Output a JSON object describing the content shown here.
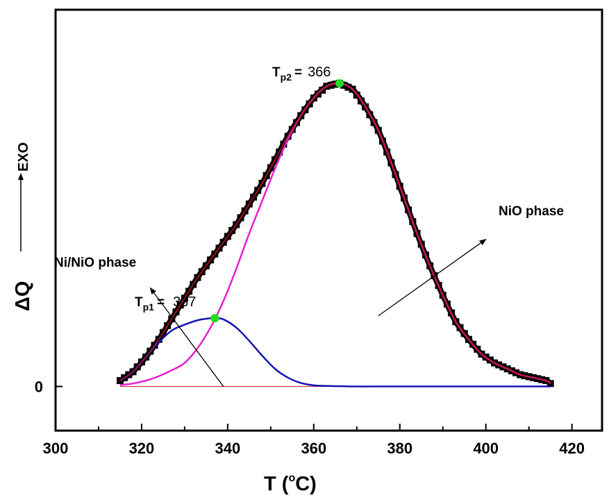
{
  "chart_data": {
    "type": "line",
    "xlabel": "T (°C)",
    "xlabel_main": "T (",
    "xlabel_deg": "o",
    "xlabel_unit": "C)",
    "ylabel": "ΔQ",
    "ylabel_exo": "EXO",
    "xlim": [
      300,
      427
    ],
    "ylim": [
      -0.15,
      1.28
    ],
    "x_ticks": [
      300,
      320,
      340,
      360,
      380,
      400,
      420
    ],
    "x_tick_labels": [
      "300",
      "320",
      "340",
      "360",
      "380",
      "400",
      "420"
    ],
    "y_ticks": [
      0
    ],
    "y_tick_labels": [
      "0"
    ],
    "grid": false,
    "colors": {
      "measured": "#000000",
      "total_fit": "#c0141e",
      "peak1": "#1414b4",
      "peak2": "#e61ed2",
      "baseline": "#c0141e",
      "peak_marker": "#1edc1e"
    },
    "series": [
      {
        "key": "measured",
        "x": [
          315,
          318,
          321,
          324,
          327,
          330,
          333,
          336,
          339,
          342,
          345,
          348,
          351,
          354,
          357,
          360,
          363,
          366,
          369,
          372,
          375,
          378,
          381,
          384,
          387,
          390,
          393,
          396,
          399,
          402,
          405,
          408,
          411,
          414,
          415
        ],
        "y": [
          0.02,
          0.05,
          0.1,
          0.16,
          0.23,
          0.3,
          0.37,
          0.43,
          0.49,
          0.55,
          0.62,
          0.69,
          0.77,
          0.85,
          0.92,
          0.98,
          1.02,
          1.03,
          1.01,
          0.95,
          0.87,
          0.76,
          0.64,
          0.52,
          0.41,
          0.31,
          0.22,
          0.16,
          0.11,
          0.08,
          0.06,
          0.04,
          0.03,
          0.02,
          0.01
        ]
      },
      {
        "key": "total_fit",
        "x": [
          315,
          318,
          321,
          324,
          327,
          330,
          333,
          336,
          339,
          342,
          345,
          348,
          351,
          354,
          357,
          360,
          363,
          366,
          369,
          372,
          375,
          378,
          381,
          384,
          387,
          390,
          393,
          396,
          399,
          402,
          405,
          408,
          411,
          414,
          415
        ],
        "y": [
          0.02,
          0.05,
          0.1,
          0.16,
          0.23,
          0.3,
          0.37,
          0.43,
          0.49,
          0.55,
          0.62,
          0.69,
          0.77,
          0.85,
          0.92,
          0.98,
          1.02,
          1.03,
          1.01,
          0.95,
          0.87,
          0.76,
          0.64,
          0.52,
          0.41,
          0.31,
          0.22,
          0.16,
          0.11,
          0.08,
          0.06,
          0.04,
          0.03,
          0.02,
          0.01
        ]
      },
      {
        "key": "peak1",
        "x": [
          315,
          318,
          321,
          324,
          327,
          330,
          333,
          336,
          337,
          339,
          342,
          345,
          348,
          351,
          354,
          357,
          360,
          363,
          366,
          370,
          375,
          380,
          390,
          400,
          415
        ],
        "y": [
          0.02,
          0.05,
          0.1,
          0.15,
          0.19,
          0.21,
          0.225,
          0.232,
          0.232,
          0.228,
          0.2,
          0.155,
          0.105,
          0.06,
          0.03,
          0.012,
          0.004,
          0.002,
          0.001,
          0.0,
          0.0,
          0.0,
          0.0,
          0.0,
          0.0
        ]
      },
      {
        "key": "peak2",
        "x": [
          315,
          318,
          321,
          324,
          327,
          330,
          333,
          336,
          339,
          342,
          345,
          348,
          351,
          354,
          357,
          360,
          363,
          366,
          369,
          372,
          375,
          378,
          381,
          384,
          387,
          390,
          393,
          396,
          399,
          402,
          405,
          408,
          411,
          414,
          415
        ],
        "y": [
          0.005,
          0.01,
          0.02,
          0.035,
          0.055,
          0.08,
          0.13,
          0.2,
          0.29,
          0.4,
          0.52,
          0.63,
          0.74,
          0.84,
          0.92,
          0.98,
          1.02,
          1.03,
          1.01,
          0.95,
          0.87,
          0.76,
          0.64,
          0.52,
          0.41,
          0.31,
          0.22,
          0.16,
          0.11,
          0.08,
          0.06,
          0.04,
          0.03,
          0.02,
          0.01
        ]
      }
    ],
    "baseline": {
      "x": [
        315,
        415
      ],
      "y": [
        0,
        0
      ]
    },
    "peaks": [
      {
        "x": 337,
        "y": 0.232
      },
      {
        "x": 366,
        "y": 1.03
      }
    ],
    "annotations": {
      "tp1_main": "T",
      "tp1_sub": "p1",
      "tp1_eq": "=",
      "tp1_value": "337",
      "tp2_main": "T",
      "tp2_sub": "p2",
      "tp2_eq": "=",
      "tp2_value": "366",
      "phase_left": "Ni/NiO phase",
      "phase_right": "NiO phase"
    },
    "arrows": [
      {
        "from": [
          339,
          0.0
        ],
        "to": [
          322,
          0.335
        ]
      },
      {
        "from": [
          375,
          0.24
        ],
        "to": [
          400,
          0.5
        ]
      }
    ]
  }
}
